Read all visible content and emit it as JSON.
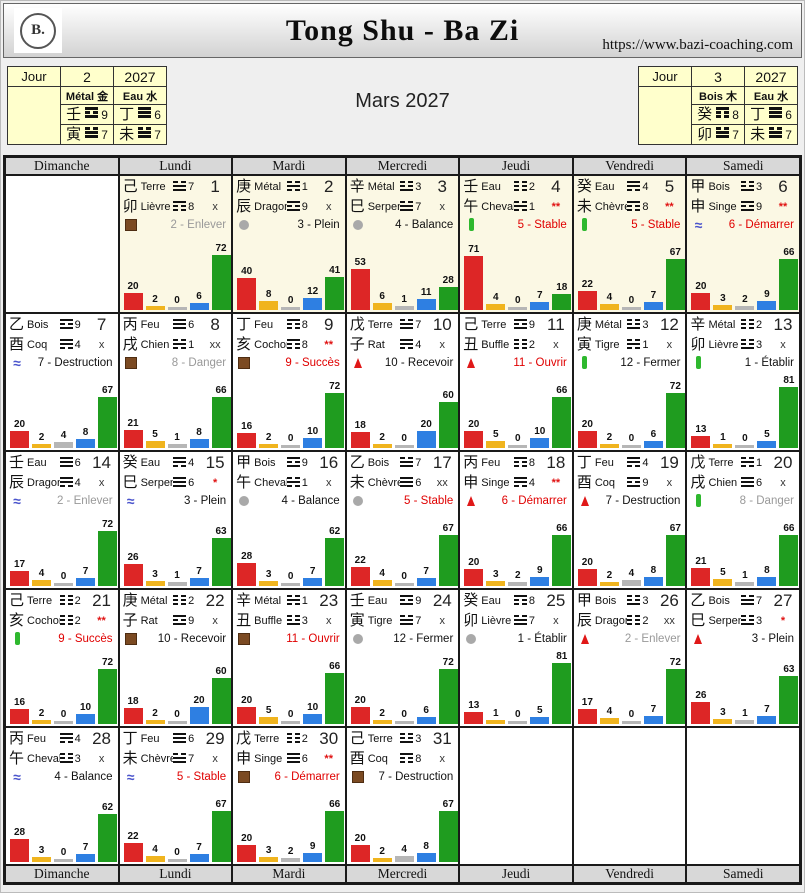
{
  "header": {
    "logo_text": "B.",
    "title": "Tong Shu - Ba Zi",
    "url": "https://www.bazi-coaching.com"
  },
  "month_title": "Mars 2027",
  "pillar_tables": {
    "left": {
      "label": "Jour",
      "day": "2",
      "year": "2027",
      "columns": [
        {
          "element": "Métal 金",
          "stem": "壬",
          "stem_star": 9,
          "branch": "寅",
          "branch_star": 7
        },
        {
          "element": "Eau 水",
          "stem": "丁",
          "stem_star": 6,
          "branch": "未",
          "branch_star": 7
        }
      ]
    },
    "right": {
      "label": "Jour",
      "day": "3",
      "year": "2027",
      "columns": [
        {
          "element": "Bois 木",
          "stem": "癸",
          "stem_star": 8,
          "branch": "卯",
          "branch_star": 7
        },
        {
          "element": "Eau 水",
          "stem": "丁",
          "stem_star": 6,
          "branch": "未",
          "branch_star": 7
        }
      ]
    }
  },
  "weekdays": [
    "Dimanche",
    "Lundi",
    "Mardi",
    "Mercredi",
    "Jeudi",
    "Vendredi",
    "Samedi"
  ],
  "bar_colors": [
    "#dd2626",
    "#f0b41e",
    "#b6b6b6",
    "#2e7fe2",
    "#1f9c1f"
  ],
  "status_colors": {
    "alert": "#e00000",
    "muted": "#999999",
    "normal": "#111111"
  },
  "days": [
    {
      "day": 1,
      "stem": "己",
      "stem_name": "Terre",
      "stem_star": 7,
      "branch": "卯",
      "branch_name": "Lièvre",
      "branch_star": 8,
      "mark": "x",
      "mark_alert": false,
      "officer": "2 - Enlever",
      "officer_style": "muted",
      "icon": "terre-icon",
      "bars": [
        20,
        2,
        0,
        6,
        72
      ],
      "highlight": true
    },
    {
      "day": 2,
      "stem": "庚",
      "stem_name": "Métal",
      "stem_star": 1,
      "branch": "辰",
      "branch_name": "Dragon",
      "branch_star": 9,
      "mark": "x",
      "mark_alert": false,
      "officer": "3 - Plein",
      "officer_style": "normal",
      "icon": "metal-icon",
      "bars": [
        40,
        8,
        0,
        12,
        41
      ],
      "highlight": true
    },
    {
      "day": 3,
      "stem": "辛",
      "stem_name": "Métal",
      "stem_star": 3,
      "branch": "巳",
      "branch_name": "Serpent",
      "branch_star": 7,
      "mark": "x",
      "mark_alert": false,
      "officer": "4 - Balance",
      "officer_style": "normal",
      "icon": "metal-icon",
      "bars": [
        53,
        6,
        1,
        11,
        28
      ],
      "highlight": true
    },
    {
      "day": 4,
      "stem": "壬",
      "stem_name": "Eau",
      "stem_star": 2,
      "branch": "午",
      "branch_name": "Cheval",
      "branch_star": 1,
      "mark": "**",
      "mark_alert": true,
      "officer": "5 - Stable",
      "officer_style": "alert",
      "icon": "bois-icon",
      "bars": [
        71,
        4,
        0,
        7,
        18
      ],
      "highlight": true
    },
    {
      "day": 5,
      "stem": "癸",
      "stem_name": "Eau",
      "stem_star": 4,
      "branch": "未",
      "branch_name": "Chèvre",
      "branch_star": 8,
      "mark": "**",
      "mark_alert": true,
      "officer": "5 - Stable",
      "officer_style": "alert",
      "icon": "bois-icon",
      "bars": [
        22,
        4,
        0,
        7,
        67
      ],
      "highlight": true
    },
    {
      "day": 6,
      "stem": "甲",
      "stem_name": "Bois",
      "stem_star": 3,
      "branch": "申",
      "branch_name": "Singe",
      "branch_star": 9,
      "mark": "**",
      "mark_alert": true,
      "officer": "6 - Démarrer",
      "officer_style": "alert",
      "icon": "eau-icon",
      "bars": [
        20,
        3,
        2,
        9,
        66
      ],
      "highlight": true
    },
    {
      "day": 7,
      "stem": "乙",
      "stem_name": "Bois",
      "stem_star": 9,
      "branch": "酉",
      "branch_name": "Coq",
      "branch_star": 4,
      "mark": "x",
      "mark_alert": false,
      "officer": "7 - Destruction",
      "officer_style": "normal",
      "icon": "eau-icon",
      "bars": [
        20,
        2,
        4,
        8,
        67
      ],
      "highlight": false
    },
    {
      "day": 8,
      "stem": "丙",
      "stem_name": "Feu",
      "stem_star": 6,
      "branch": "戌",
      "branch_name": "Chien",
      "branch_star": 1,
      "mark": "xx",
      "mark_alert": false,
      "officer": "8 - Danger",
      "officer_style": "muted",
      "icon": "terre-icon",
      "bars": [
        21,
        5,
        1,
        8,
        66
      ],
      "highlight": false
    },
    {
      "day": 9,
      "stem": "丁",
      "stem_name": "Feu",
      "stem_star": 8,
      "branch": "亥",
      "branch_name": "Cochon",
      "branch_star": 8,
      "mark": "**",
      "mark_alert": true,
      "officer": "9 - Succès",
      "officer_style": "alert",
      "icon": "terre-icon",
      "bars": [
        16,
        2,
        0,
        10,
        72
      ],
      "highlight": false
    },
    {
      "day": 10,
      "stem": "戊",
      "stem_name": "Terre",
      "stem_star": 7,
      "branch": "子",
      "branch_name": "Rat",
      "branch_star": 4,
      "mark": "x",
      "mark_alert": false,
      "officer": "10 - Recevoir",
      "officer_style": "normal",
      "icon": "feu-icon",
      "bars": [
        18,
        2,
        0,
        20,
        60
      ],
      "highlight": false
    },
    {
      "day": 11,
      "stem": "己",
      "stem_name": "Terre",
      "stem_star": 9,
      "branch": "丑",
      "branch_name": "Buffle",
      "branch_star": 2,
      "mark": "x",
      "mark_alert": false,
      "officer": "11 - Ouvrir",
      "officer_style": "alert",
      "icon": "feu-icon",
      "bars": [
        20,
        5,
        0,
        10,
        66
      ],
      "highlight": false
    },
    {
      "day": 12,
      "stem": "庚",
      "stem_name": "Métal",
      "stem_star": 3,
      "branch": "寅",
      "branch_name": "Tigre",
      "branch_star": 1,
      "mark": "x",
      "mark_alert": false,
      "officer": "12 - Fermer",
      "officer_style": "normal",
      "icon": "bois-icon",
      "bars": [
        20,
        2,
        0,
        6,
        72
      ],
      "highlight": false
    },
    {
      "day": 13,
      "stem": "辛",
      "stem_name": "Métal",
      "stem_star": 2,
      "branch": "卯",
      "branch_name": "Lièvre",
      "branch_star": 3,
      "mark": "x",
      "mark_alert": false,
      "officer": "1 - Établir",
      "officer_style": "normal",
      "icon": "bois-icon",
      "bars": [
        13,
        1,
        0,
        5,
        81
      ],
      "highlight": false
    },
    {
      "day": 14,
      "stem": "壬",
      "stem_name": "Eau",
      "stem_star": 6,
      "branch": "辰",
      "branch_name": "Dragon",
      "branch_star": 4,
      "mark": "x",
      "mark_alert": false,
      "officer": "2 - Enlever",
      "officer_style": "muted",
      "icon": "eau-icon",
      "bars": [
        17,
        4,
        0,
        7,
        72
      ],
      "highlight": false
    },
    {
      "day": 15,
      "stem": "癸",
      "stem_name": "Eau",
      "stem_star": 4,
      "branch": "巳",
      "branch_name": "Serpent",
      "branch_star": 6,
      "mark": "*",
      "mark_alert": true,
      "officer": "3 - Plein",
      "officer_style": "normal",
      "icon": "eau-icon",
      "bars": [
        26,
        3,
        1,
        7,
        63
      ],
      "highlight": false
    },
    {
      "day": 16,
      "stem": "甲",
      "stem_name": "Bois",
      "stem_star": 9,
      "branch": "午",
      "branch_name": "Cheval",
      "branch_star": 1,
      "mark": "x",
      "mark_alert": false,
      "officer": "4 - Balance",
      "officer_style": "normal",
      "icon": "metal-icon",
      "bars": [
        28,
        3,
        0,
        7,
        62
      ],
      "highlight": false
    },
    {
      "day": 17,
      "stem": "乙",
      "stem_name": "Bois",
      "stem_star": 7,
      "branch": "未",
      "branch_name": "Chèvre",
      "branch_star": 6,
      "mark": "xx",
      "mark_alert": false,
      "officer": "5 - Stable",
      "officer_style": "alert",
      "icon": "metal-icon",
      "bars": [
        22,
        4,
        0,
        7,
        67
      ],
      "highlight": false
    },
    {
      "day": 18,
      "stem": "丙",
      "stem_name": "Feu",
      "stem_star": 8,
      "branch": "申",
      "branch_name": "Singe",
      "branch_star": 4,
      "mark": "**",
      "mark_alert": true,
      "officer": "6 - Démarrer",
      "officer_style": "alert",
      "icon": "feu-icon",
      "bars": [
        20,
        3,
        2,
        9,
        66
      ],
      "highlight": false
    },
    {
      "day": 19,
      "stem": "丁",
      "stem_name": "Feu",
      "stem_star": 4,
      "branch": "酉",
      "branch_name": "Coq",
      "branch_star": 9,
      "mark": "x",
      "mark_alert": false,
      "officer": "7 - Destruction",
      "officer_style": "normal",
      "icon": "feu-icon",
      "bars": [
        20,
        2,
        4,
        8,
        67
      ],
      "highlight": false
    },
    {
      "day": 20,
      "stem": "戊",
      "stem_name": "Terre",
      "stem_star": 1,
      "branch": "戌",
      "branch_name": "Chien",
      "branch_star": 6,
      "mark": "x",
      "mark_alert": false,
      "officer": "8 - Danger",
      "officer_style": "muted",
      "icon": "bois-icon",
      "bars": [
        21,
        5,
        1,
        8,
        66
      ],
      "highlight": false
    },
    {
      "day": 21,
      "stem": "己",
      "stem_name": "Terre",
      "stem_star": 2,
      "branch": "亥",
      "branch_name": "Cochon",
      "branch_star": 2,
      "mark": "**",
      "mark_alert": true,
      "officer": "9 - Succès",
      "officer_style": "alert",
      "icon": "bois-icon",
      "bars": [
        16,
        2,
        0,
        10,
        72
      ],
      "highlight": false
    },
    {
      "day": 22,
      "stem": "庚",
      "stem_name": "Métal",
      "stem_star": 2,
      "branch": "子",
      "branch_name": "Rat",
      "branch_star": 9,
      "mark": "x",
      "mark_alert": false,
      "officer": "10 - Recevoir",
      "officer_style": "normal",
      "icon": "terre-icon",
      "bars": [
        18,
        2,
        0,
        20,
        60
      ],
      "highlight": false
    },
    {
      "day": 23,
      "stem": "辛",
      "stem_name": "Métal",
      "stem_star": 1,
      "branch": "丑",
      "branch_name": "Buffle",
      "branch_star": 3,
      "mark": "x",
      "mark_alert": false,
      "officer": "11 - Ouvrir",
      "officer_style": "alert",
      "icon": "terre-icon",
      "bars": [
        20,
        5,
        0,
        10,
        66
      ],
      "highlight": false
    },
    {
      "day": 24,
      "stem": "壬",
      "stem_name": "Eau",
      "stem_star": 9,
      "branch": "寅",
      "branch_name": "Tigre",
      "branch_star": 7,
      "mark": "x",
      "mark_alert": false,
      "officer": "12 - Fermer",
      "officer_style": "normal",
      "icon": "metal-icon",
      "bars": [
        20,
        2,
        0,
        6,
        72
      ],
      "highlight": false
    },
    {
      "day": 25,
      "stem": "癸",
      "stem_name": "Eau",
      "stem_star": 8,
      "branch": "卯",
      "branch_name": "Lièvre",
      "branch_star": 7,
      "mark": "x",
      "mark_alert": false,
      "officer": "1 - Établir",
      "officer_style": "normal",
      "icon": "metal-icon",
      "bars": [
        13,
        1,
        0,
        5,
        81
      ],
      "highlight": false
    },
    {
      "day": 26,
      "stem": "甲",
      "stem_name": "Bois",
      "stem_star": 3,
      "branch": "辰",
      "branch_name": "Dragon",
      "branch_star": 2,
      "mark": "xx",
      "mark_alert": false,
      "officer": "2 - Enlever",
      "officer_style": "muted",
      "icon": "feu-icon",
      "bars": [
        17,
        4,
        0,
        7,
        72
      ],
      "highlight": false
    },
    {
      "day": 27,
      "stem": "乙",
      "stem_name": "Bois",
      "stem_star": 7,
      "branch": "巳",
      "branch_name": "Serpent",
      "branch_star": 3,
      "mark": "*",
      "mark_alert": true,
      "officer": "3 - Plein",
      "officer_style": "normal",
      "icon": "feu-icon",
      "bars": [
        26,
        3,
        1,
        7,
        63
      ],
      "highlight": false
    },
    {
      "day": 28,
      "stem": "丙",
      "stem_name": "Feu",
      "stem_star": 4,
      "branch": "午",
      "branch_name": "Cheval",
      "branch_star": 3,
      "mark": "x",
      "mark_alert": false,
      "officer": "4 - Balance",
      "officer_style": "normal",
      "icon": "eau-icon",
      "bars": [
        28,
        3,
        0,
        7,
        62
      ],
      "highlight": false
    },
    {
      "day": 29,
      "stem": "丁",
      "stem_name": "Feu",
      "stem_star": 6,
      "branch": "未",
      "branch_name": "Chèvre",
      "branch_star": 7,
      "mark": "x",
      "mark_alert": false,
      "officer": "5 - Stable",
      "officer_style": "alert",
      "icon": "eau-icon",
      "bars": [
        22,
        4,
        0,
        7,
        67
      ],
      "highlight": false
    },
    {
      "day": 30,
      "stem": "戊",
      "stem_name": "Terre",
      "stem_star": 2,
      "branch": "申",
      "branch_name": "Singe",
      "branch_star": 6,
      "mark": "**",
      "mark_alert": true,
      "officer": "6 - Démarrer",
      "officer_style": "alert",
      "icon": "terre-icon",
      "bars": [
        20,
        3,
        2,
        9,
        66
      ],
      "highlight": false
    },
    {
      "day": 31,
      "stem": "己",
      "stem_name": "Terre",
      "stem_star": 3,
      "branch": "酉",
      "branch_name": "Coq",
      "branch_star": 8,
      "mark": "x",
      "mark_alert": false,
      "officer": "7 - Destruction",
      "officer_style": "normal",
      "icon": "terre-icon",
      "bars": [
        20,
        2,
        4,
        8,
        67
      ],
      "highlight": false
    }
  ]
}
